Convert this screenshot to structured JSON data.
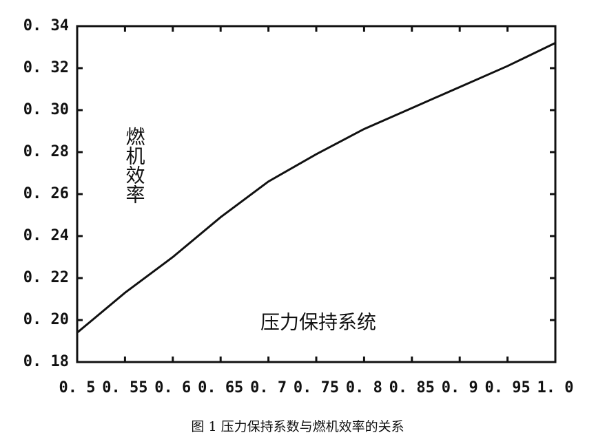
{
  "chart_data": {
    "type": "line",
    "x": [
      0.5,
      0.55,
      0.6,
      0.65,
      0.7,
      0.75,
      0.8,
      0.85,
      0.9,
      0.95,
      1.0
    ],
    "values": [
      0.194,
      0.213,
      0.23,
      0.249,
      0.266,
      0.279,
      0.291,
      0.301,
      0.311,
      0.321,
      0.332
    ],
    "color": "#111111",
    "xlim": [
      0.5,
      1.0
    ],
    "ylim": [
      0.18,
      0.34
    ],
    "xticks": [
      {
        "value": 0.5,
        "label": "0. 5"
      },
      {
        "value": 0.55,
        "label": "0. 55"
      },
      {
        "value": 0.6,
        "label": "0. 6"
      },
      {
        "value": 0.65,
        "label": "0. 65"
      },
      {
        "value": 0.7,
        "label": "0. 7"
      },
      {
        "value": 0.75,
        "label": "0. 75"
      },
      {
        "value": 0.8,
        "label": "0. 8"
      },
      {
        "value": 0.85,
        "label": "0. 85"
      },
      {
        "value": 0.9,
        "label": "0. 9"
      },
      {
        "value": 0.95,
        "label": "0. 95"
      },
      {
        "value": 1.0,
        "label": "1. 0"
      }
    ],
    "yticks": [
      {
        "value": 0.18,
        "label": "0. 18"
      },
      {
        "value": 0.2,
        "label": "0. 20"
      },
      {
        "value": 0.22,
        "label": "0. 22"
      },
      {
        "value": 0.24,
        "label": "0. 24"
      },
      {
        "value": 0.26,
        "label": "0. 26"
      },
      {
        "value": 0.28,
        "label": "0. 28"
      },
      {
        "value": 0.3,
        "label": "0. 30"
      },
      {
        "value": 0.32,
        "label": "0. 32"
      },
      {
        "value": 0.34,
        "label": "0. 34"
      }
    ],
    "ylabel": "燃机效率",
    "xlabel": "压力保持系统",
    "caption": "图 1 压力保持系数与燃机效率的关系"
  }
}
